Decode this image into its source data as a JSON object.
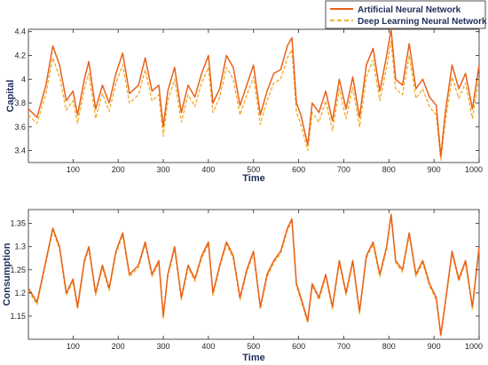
{
  "legend": {
    "items": [
      {
        "label": "Artificial Neural Network",
        "color": "#E8611A",
        "dash": "solid"
      },
      {
        "label": "Deep Learning Neural Network",
        "color": "#F2B134",
        "dash": "dashed"
      }
    ],
    "placement": "top-right"
  },
  "chart_data": [
    {
      "type": "line",
      "title": "",
      "xlabel": "Time",
      "ylabel": "Capital",
      "xlim": [
        1,
        1000
      ],
      "ylim": [
        3.3,
        4.42
      ],
      "xticks": [
        100,
        200,
        300,
        400,
        500,
        600,
        700,
        800,
        900,
        1000
      ],
      "yticks": [
        3.4,
        3.6,
        3.8,
        4,
        4.2,
        4.4
      ],
      "grid": false,
      "x": [
        1,
        20,
        40,
        55,
        70,
        85,
        100,
        110,
        125,
        135,
        150,
        165,
        180,
        195,
        210,
        225,
        245,
        260,
        275,
        290,
        300,
        310,
        325,
        340,
        355,
        370,
        385,
        400,
        410,
        425,
        440,
        455,
        470,
        485,
        500,
        515,
        530,
        545,
        560,
        575,
        585,
        595,
        605,
        620,
        630,
        645,
        660,
        675,
        690,
        705,
        720,
        735,
        750,
        765,
        780,
        795,
        805,
        815,
        830,
        845,
        860,
        875,
        890,
        905,
        915,
        925,
        940,
        955,
        970,
        985,
        1000
      ],
      "series": [
        {
          "name": "Artificial Neural Network",
          "color": "#E8611A",
          "dash": "solid",
          "values": [
            3.75,
            3.68,
            3.95,
            4.28,
            4.12,
            3.82,
            3.9,
            3.7,
            4.0,
            4.15,
            3.75,
            3.95,
            3.8,
            4.05,
            4.22,
            3.88,
            3.95,
            4.18,
            3.9,
            3.95,
            3.6,
            3.9,
            4.1,
            3.72,
            3.95,
            3.85,
            4.05,
            4.2,
            3.8,
            3.92,
            4.2,
            4.1,
            3.78,
            3.95,
            4.12,
            3.7,
            3.9,
            4.05,
            4.08,
            4.28,
            4.35,
            3.8,
            3.7,
            3.45,
            3.8,
            3.72,
            3.9,
            3.65,
            4.0,
            3.75,
            4.02,
            3.68,
            4.12,
            4.26,
            3.9,
            4.2,
            4.42,
            4.0,
            3.95,
            4.3,
            3.92,
            4.0,
            3.85,
            3.78,
            3.35,
            3.72,
            4.12,
            3.92,
            4.05,
            3.75,
            4.12
          ]
        },
        {
          "name": "Deep Learning Neural Network",
          "color": "#F2B134",
          "dash": "dashed",
          "values": [
            3.7,
            3.63,
            3.88,
            4.18,
            4.02,
            3.74,
            3.82,
            3.63,
            3.92,
            4.05,
            3.67,
            3.88,
            3.73,
            3.97,
            4.12,
            3.8,
            3.87,
            4.08,
            3.82,
            3.87,
            3.52,
            3.82,
            4.0,
            3.64,
            3.87,
            3.77,
            3.97,
            4.1,
            3.72,
            3.85,
            4.1,
            4.0,
            3.7,
            3.87,
            4.02,
            3.62,
            3.82,
            3.97,
            4.0,
            4.18,
            4.25,
            3.72,
            3.62,
            3.4,
            3.72,
            3.64,
            3.82,
            3.57,
            3.92,
            3.67,
            3.93,
            3.6,
            4.02,
            4.16,
            3.82,
            4.1,
            4.32,
            3.92,
            3.87,
            4.2,
            3.84,
            3.92,
            3.77,
            3.7,
            3.32,
            3.64,
            4.02,
            3.84,
            3.97,
            3.67,
            4.02
          ]
        }
      ]
    },
    {
      "type": "line",
      "title": "",
      "xlabel": "Time",
      "ylabel": "Consumption",
      "xlim": [
        1,
        1000
      ],
      "ylim": [
        1.1,
        1.38
      ],
      "xticks": [
        100,
        200,
        300,
        400,
        500,
        600,
        700,
        800,
        900,
        1000
      ],
      "yticks": [
        1.15,
        1.2,
        1.25,
        1.3,
        1.35
      ],
      "grid": false,
      "x": [
        1,
        20,
        40,
        55,
        70,
        85,
        100,
        110,
        125,
        135,
        150,
        165,
        180,
        195,
        210,
        225,
        245,
        260,
        275,
        290,
        300,
        310,
        325,
        340,
        355,
        370,
        385,
        400,
        410,
        425,
        440,
        455,
        470,
        485,
        500,
        515,
        530,
        545,
        560,
        575,
        585,
        595,
        605,
        620,
        630,
        645,
        660,
        675,
        690,
        705,
        720,
        735,
        750,
        765,
        780,
        795,
        805,
        815,
        830,
        845,
        860,
        875,
        890,
        905,
        915,
        925,
        940,
        955,
        970,
        985,
        1000
      ],
      "series": [
        {
          "name": "Artificial Neural Network",
          "color": "#E8611A",
          "dash": "solid",
          "values": [
            1.21,
            1.18,
            1.27,
            1.34,
            1.3,
            1.2,
            1.23,
            1.17,
            1.27,
            1.3,
            1.2,
            1.26,
            1.21,
            1.29,
            1.33,
            1.24,
            1.26,
            1.31,
            1.24,
            1.27,
            1.15,
            1.24,
            1.3,
            1.19,
            1.26,
            1.23,
            1.28,
            1.31,
            1.2,
            1.26,
            1.31,
            1.28,
            1.19,
            1.25,
            1.29,
            1.17,
            1.24,
            1.27,
            1.29,
            1.34,
            1.36,
            1.22,
            1.19,
            1.14,
            1.22,
            1.19,
            1.24,
            1.17,
            1.27,
            1.2,
            1.27,
            1.16,
            1.28,
            1.31,
            1.24,
            1.3,
            1.37,
            1.27,
            1.25,
            1.33,
            1.24,
            1.27,
            1.22,
            1.19,
            1.11,
            1.18,
            1.29,
            1.23,
            1.27,
            1.17,
            1.3
          ]
        },
        {
          "name": "Deep Learning Neural Network",
          "color": "#F2B134",
          "dash": "dashed",
          "values": [
            1.205,
            1.175,
            1.265,
            1.335,
            1.295,
            1.195,
            1.225,
            1.165,
            1.265,
            1.295,
            1.195,
            1.255,
            1.205,
            1.285,
            1.325,
            1.235,
            1.255,
            1.305,
            1.235,
            1.265,
            1.145,
            1.235,
            1.295,
            1.185,
            1.255,
            1.225,
            1.275,
            1.305,
            1.195,
            1.255,
            1.305,
            1.275,
            1.185,
            1.245,
            1.285,
            1.165,
            1.235,
            1.265,
            1.285,
            1.335,
            1.355,
            1.215,
            1.185,
            1.135,
            1.215,
            1.185,
            1.235,
            1.165,
            1.265,
            1.195,
            1.265,
            1.155,
            1.275,
            1.305,
            1.235,
            1.295,
            1.365,
            1.265,
            1.245,
            1.325,
            1.235,
            1.265,
            1.215,
            1.185,
            1.105,
            1.175,
            1.285,
            1.225,
            1.265,
            1.165,
            1.295
          ]
        }
      ]
    }
  ]
}
